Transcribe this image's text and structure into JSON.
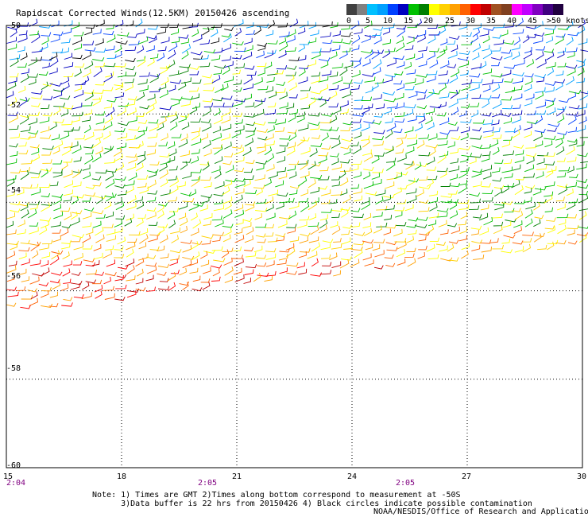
{
  "title": "Rapidscat Corrected Winds(12.5KM) 20150426 ascending",
  "scale": {
    "labels": [
      "0",
      "5",
      "10",
      "15",
      "20",
      "25",
      "30",
      "35",
      "40",
      "45",
      ">50 knots"
    ],
    "colors": [
      "#404040",
      "#808080",
      "#00c0ff",
      "#00a0ff",
      "#0040ff",
      "#0000c0",
      "#00c000",
      "#008000",
      "#ffff00",
      "#ffd000",
      "#ffa000",
      "#ff6000",
      "#ff0000",
      "#c00000",
      "#a05020",
      "#804020",
      "#ff00ff",
      "#c000ff",
      "#8000c0",
      "#400080",
      "#200040"
    ]
  },
  "axes": {
    "x_labels": [
      "15",
      "18",
      "21",
      "24",
      "27",
      "30"
    ],
    "y_labels": [
      "-50",
      "-52",
      "-54",
      "-56",
      "-58",
      "-60"
    ]
  },
  "times": [
    "2:04",
    "2:05",
    "2:05"
  ],
  "notes": {
    "line1": "Note: 1) Times are GMT 2)Times along bottom correspond to measurement at -50S",
    "line2": "      3)Data buffer is 22 hrs from 20150426 4) Black circles indicate possible contamination"
  },
  "credit": "NOAA/NESDIS/Office of Research and Applications",
  "wind_bands": [
    {
      "lat_from": -50.0,
      "lat_to": -50.9,
      "colors": [
        "#0040ff",
        "#00a0ff",
        "#000000",
        "#0000c0",
        "#00c000"
      ],
      "speed_knots": "5-15"
    },
    {
      "lat_from": -50.9,
      "lat_to": -52.2,
      "colors": [
        "#00c000",
        "#008000",
        "#0000c0",
        "#ffff00"
      ],
      "speed_knots": "10-20"
    },
    {
      "lat_from": -52.2,
      "lat_to": -53.4,
      "colors": [
        "#ffff00",
        "#00c000",
        "#ffd000",
        "#008000"
      ],
      "speed_knots": "15-25"
    },
    {
      "lat_from": -53.4,
      "lat_to": -54.6,
      "colors": [
        "#00c000",
        "#ffff00",
        "#ffd000",
        "#008000"
      ],
      "speed_knots": "15-25"
    },
    {
      "lat_from": -54.6,
      "lat_to": -55.4,
      "colors": [
        "#ffd000",
        "#ffa000",
        "#ff6000",
        "#ffff00"
      ],
      "speed_knots": "20-30"
    },
    {
      "lat_from": -55.4,
      "lat_to": -56.4,
      "colors": [
        "#ff6000",
        "#ff0000",
        "#c00000",
        "#ffa000"
      ],
      "speed_knots": "25-35"
    }
  ]
}
